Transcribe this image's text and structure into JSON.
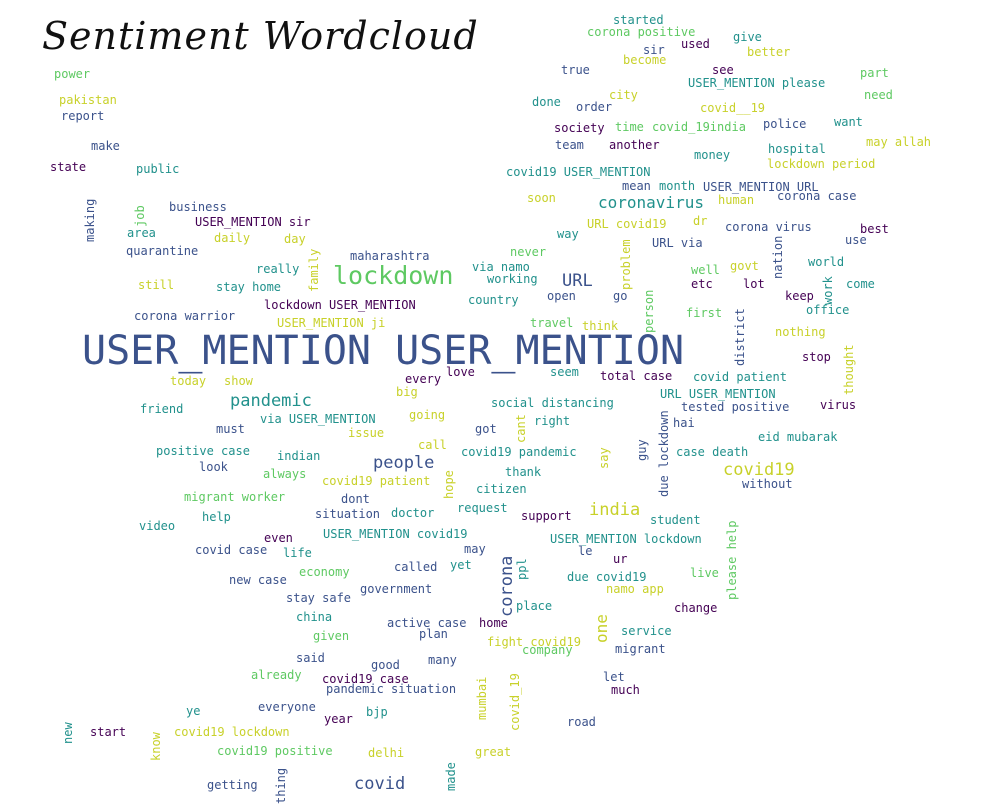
{
  "title": "Sentiment Wordcloud",
  "palette": {
    "dark_purple": "#440154",
    "indigo": "#3b528b",
    "teal": "#21918c",
    "green": "#5ec962",
    "yellow": "#c8d12a"
  },
  "words": [
    {
      "text": "USER_MENTION USER_MENTION",
      "color": "indigo"
    },
    {
      "text": "lockdown",
      "color": "green"
    },
    {
      "text": "coronavirus",
      "color": "teal"
    },
    {
      "text": "URL",
      "color": "indigo"
    },
    {
      "text": "pandemic",
      "color": "teal"
    },
    {
      "text": "people",
      "color": "indigo"
    },
    {
      "text": "covid19",
      "color": "yellow"
    },
    {
      "text": "india",
      "color": "yellow"
    },
    {
      "text": "covid",
      "color": "indigo"
    },
    {
      "text": "corona",
      "color": "indigo"
    },
    {
      "text": "started",
      "color": "teal"
    },
    {
      "text": "corona positive",
      "color": "green"
    },
    {
      "text": "give",
      "color": "teal"
    },
    {
      "text": "sir",
      "color": "indigo"
    },
    {
      "text": "used",
      "color": "dark_purple"
    },
    {
      "text": "better",
      "color": "yellow"
    },
    {
      "text": "become",
      "color": "yellow"
    },
    {
      "text": "true",
      "color": "indigo"
    },
    {
      "text": "see",
      "color": "dark_purple"
    },
    {
      "text": "power",
      "color": "green"
    },
    {
      "text": "part",
      "color": "green"
    },
    {
      "text": "USER_MENTION please",
      "color": "teal"
    },
    {
      "text": "pakistan",
      "color": "yellow"
    },
    {
      "text": "city",
      "color": "yellow"
    },
    {
      "text": "need",
      "color": "green"
    },
    {
      "text": "done",
      "color": "teal"
    },
    {
      "text": "order",
      "color": "indigo"
    },
    {
      "text": "covid__19",
      "color": "yellow"
    },
    {
      "text": "report",
      "color": "indigo"
    },
    {
      "text": "society",
      "color": "dark_purple"
    },
    {
      "text": "time",
      "color": "green"
    },
    {
      "text": "covid_19india",
      "color": "green"
    },
    {
      "text": "police",
      "color": "indigo"
    },
    {
      "text": "want",
      "color": "teal"
    },
    {
      "text": "make",
      "color": "indigo"
    },
    {
      "text": "team",
      "color": "indigo"
    },
    {
      "text": "another",
      "color": "dark_purple"
    },
    {
      "text": "hospital",
      "color": "teal"
    },
    {
      "text": "may allah",
      "color": "yellow"
    },
    {
      "text": "money",
      "color": "teal"
    },
    {
      "text": "state",
      "color": "dark_purple"
    },
    {
      "text": "public",
      "color": "teal"
    },
    {
      "text": "lockdown period",
      "color": "yellow"
    },
    {
      "text": "covid19 USER_MENTION",
      "color": "teal"
    },
    {
      "text": "mean",
      "color": "indigo"
    },
    {
      "text": "month",
      "color": "teal"
    },
    {
      "text": "USER_MENTION URL",
      "color": "indigo"
    },
    {
      "text": "soon",
      "color": "yellow"
    },
    {
      "text": "human",
      "color": "yellow"
    },
    {
      "text": "corona case",
      "color": "indigo"
    },
    {
      "text": "business",
      "color": "indigo"
    },
    {
      "text": "USER_MENTION sir",
      "color": "dark_purple"
    },
    {
      "text": "URL covid19",
      "color": "yellow"
    },
    {
      "text": "dr",
      "color": "yellow"
    },
    {
      "text": "area",
      "color": "teal"
    },
    {
      "text": "daily",
      "color": "yellow"
    },
    {
      "text": "day",
      "color": "yellow"
    },
    {
      "text": "way",
      "color": "teal"
    },
    {
      "text": "URL via",
      "color": "indigo"
    },
    {
      "text": "corona virus",
      "color": "indigo"
    },
    {
      "text": "best",
      "color": "dark_purple"
    },
    {
      "text": "use",
      "color": "indigo"
    },
    {
      "text": "quarantine",
      "color": "indigo"
    },
    {
      "text": "maharashtra",
      "color": "indigo"
    },
    {
      "text": "never",
      "color": "green"
    },
    {
      "text": "world",
      "color": "teal"
    },
    {
      "text": "really",
      "color": "teal"
    },
    {
      "text": "via namo",
      "color": "teal"
    },
    {
      "text": "well",
      "color": "green"
    },
    {
      "text": "govt",
      "color": "yellow"
    },
    {
      "text": "still",
      "color": "yellow"
    },
    {
      "text": "stay home",
      "color": "teal"
    },
    {
      "text": "working",
      "color": "teal"
    },
    {
      "text": "etc",
      "color": "dark_purple"
    },
    {
      "text": "lot",
      "color": "dark_purple"
    },
    {
      "text": "come",
      "color": "teal"
    },
    {
      "text": "open",
      "color": "indigo"
    },
    {
      "text": "go",
      "color": "indigo"
    },
    {
      "text": "keep",
      "color": "dark_purple"
    },
    {
      "text": "country",
      "color": "teal"
    },
    {
      "text": "lockdown USER_MENTION",
      "color": "dark_purple"
    },
    {
      "text": "first",
      "color": "green"
    },
    {
      "text": "office",
      "color": "teal"
    },
    {
      "text": "corona warrior",
      "color": "indigo"
    },
    {
      "text": "USER_MENTION ji",
      "color": "yellow"
    },
    {
      "text": "travel",
      "color": "green"
    },
    {
      "text": "think",
      "color": "yellow"
    },
    {
      "text": "nothing",
      "color": "yellow"
    },
    {
      "text": "stop",
      "color": "dark_purple"
    },
    {
      "text": "today",
      "color": "yellow"
    },
    {
      "text": "show",
      "color": "yellow"
    },
    {
      "text": "every",
      "color": "dark_purple"
    },
    {
      "text": "love",
      "color": "dark_purple"
    },
    {
      "text": "seem",
      "color": "teal"
    },
    {
      "text": "total case",
      "color": "dark_purple"
    },
    {
      "text": "covid patient",
      "color": "teal"
    },
    {
      "text": "big",
      "color": "yellow"
    },
    {
      "text": "URL USER_MENTION",
      "color": "teal"
    },
    {
      "text": "friend",
      "color": "teal"
    },
    {
      "text": "social distancing",
      "color": "teal"
    },
    {
      "text": "tested positive",
      "color": "indigo"
    },
    {
      "text": "virus",
      "color": "dark_purple"
    },
    {
      "text": "going",
      "color": "yellow"
    },
    {
      "text": "via USER_MENTION",
      "color": "teal"
    },
    {
      "text": "right",
      "color": "teal"
    },
    {
      "text": "hai",
      "color": "indigo"
    },
    {
      "text": "must",
      "color": "indigo"
    },
    {
      "text": "issue",
      "color": "yellow"
    },
    {
      "text": "got",
      "color": "indigo"
    },
    {
      "text": "eid mubarak",
      "color": "teal"
    },
    {
      "text": "call",
      "color": "yellow"
    },
    {
      "text": "positive case",
      "color": "teal"
    },
    {
      "text": "indian",
      "color": "teal"
    },
    {
      "text": "covid19 pandemic",
      "color": "teal"
    },
    {
      "text": "case death",
      "color": "teal"
    },
    {
      "text": "look",
      "color": "indigo"
    },
    {
      "text": "always",
      "color": "green"
    },
    {
      "text": "thank",
      "color": "teal"
    },
    {
      "text": "covid19 patient",
      "color": "yellow"
    },
    {
      "text": "without",
      "color": "indigo"
    },
    {
      "text": "citizen",
      "color": "teal"
    },
    {
      "text": "migrant worker",
      "color": "green"
    },
    {
      "text": "dont",
      "color": "indigo"
    },
    {
      "text": "request",
      "color": "teal"
    },
    {
      "text": "help",
      "color": "teal"
    },
    {
      "text": "situation",
      "color": "indigo"
    },
    {
      "text": "doctor",
      "color": "teal"
    },
    {
      "text": "support",
      "color": "dark_purple"
    },
    {
      "text": "student",
      "color": "teal"
    },
    {
      "text": "video",
      "color": "teal"
    },
    {
      "text": "USER_MENTION covid19",
      "color": "teal"
    },
    {
      "text": "even",
      "color": "dark_purple"
    },
    {
      "text": "USER_MENTION lockdown",
      "color": "teal"
    },
    {
      "text": "covid case",
      "color": "indigo"
    },
    {
      "text": "life",
      "color": "teal"
    },
    {
      "text": "may",
      "color": "indigo"
    },
    {
      "text": "le",
      "color": "indigo"
    },
    {
      "text": "ur",
      "color": "dark_purple"
    },
    {
      "text": "called",
      "color": "indigo"
    },
    {
      "text": "yet",
      "color": "teal"
    },
    {
      "text": "economy",
      "color": "green"
    },
    {
      "text": "live",
      "color": "green"
    },
    {
      "text": "new case",
      "color": "indigo"
    },
    {
      "text": "due covid19",
      "color": "teal"
    },
    {
      "text": "government",
      "color": "indigo"
    },
    {
      "text": "namo app",
      "color": "yellow"
    },
    {
      "text": "stay safe",
      "color": "indigo"
    },
    {
      "text": "change",
      "color": "dark_purple"
    },
    {
      "text": "place",
      "color": "teal"
    },
    {
      "text": "china",
      "color": "teal"
    },
    {
      "text": "active case",
      "color": "indigo"
    },
    {
      "text": "home",
      "color": "dark_purple"
    },
    {
      "text": "service",
      "color": "teal"
    },
    {
      "text": "given",
      "color": "green"
    },
    {
      "text": "plan",
      "color": "indigo"
    },
    {
      "text": "fight covid19",
      "color": "yellow"
    },
    {
      "text": "company",
      "color": "green"
    },
    {
      "text": "migrant",
      "color": "indigo"
    },
    {
      "text": "said",
      "color": "indigo"
    },
    {
      "text": "good",
      "color": "indigo"
    },
    {
      "text": "many",
      "color": "indigo"
    },
    {
      "text": "already",
      "color": "green"
    },
    {
      "text": "covid19 case",
      "color": "dark_purple"
    },
    {
      "text": "let",
      "color": "indigo"
    },
    {
      "text": "pandemic situation",
      "color": "indigo"
    },
    {
      "text": "much",
      "color": "dark_purple"
    },
    {
      "text": "everyone",
      "color": "indigo"
    },
    {
      "text": "ye",
      "color": "teal"
    },
    {
      "text": "bjp",
      "color": "teal"
    },
    {
      "text": "year",
      "color": "dark_purple"
    },
    {
      "text": "road",
      "color": "indigo"
    },
    {
      "text": "start",
      "color": "dark_purple"
    },
    {
      "text": "covid19 lockdown",
      "color": "yellow"
    },
    {
      "text": "covid19 positive",
      "color": "green"
    },
    {
      "text": "delhi",
      "color": "yellow"
    },
    {
      "text": "great",
      "color": "yellow"
    },
    {
      "text": "getting",
      "color": "indigo"
    },
    {
      "text": "making",
      "color": "indigo"
    },
    {
      "text": "job",
      "color": "green"
    },
    {
      "text": "family",
      "color": "yellow"
    },
    {
      "text": "problem",
      "color": "yellow"
    },
    {
      "text": "person",
      "color": "green"
    },
    {
      "text": "nation",
      "color": "indigo"
    },
    {
      "text": "work",
      "color": "teal"
    },
    {
      "text": "district",
      "color": "indigo"
    },
    {
      "text": "thought",
      "color": "yellow"
    },
    {
      "text": "cant",
      "color": "yellow"
    },
    {
      "text": "guy",
      "color": "indigo"
    },
    {
      "text": "due lockdown",
      "color": "indigo"
    },
    {
      "text": "say",
      "color": "yellow"
    },
    {
      "text": "hope",
      "color": "yellow"
    },
    {
      "text": "please help",
      "color": "green"
    },
    {
      "text": "ppl",
      "color": "teal"
    },
    {
      "text": "one",
      "color": "yellow"
    },
    {
      "text": "covid_19",
      "color": "yellow"
    },
    {
      "text": "mumbai",
      "color": "yellow"
    },
    {
      "text": "new",
      "color": "teal"
    },
    {
      "text": "know",
      "color": "yellow"
    },
    {
      "text": "thing",
      "color": "indigo"
    },
    {
      "text": "made",
      "color": "teal"
    }
  ]
}
